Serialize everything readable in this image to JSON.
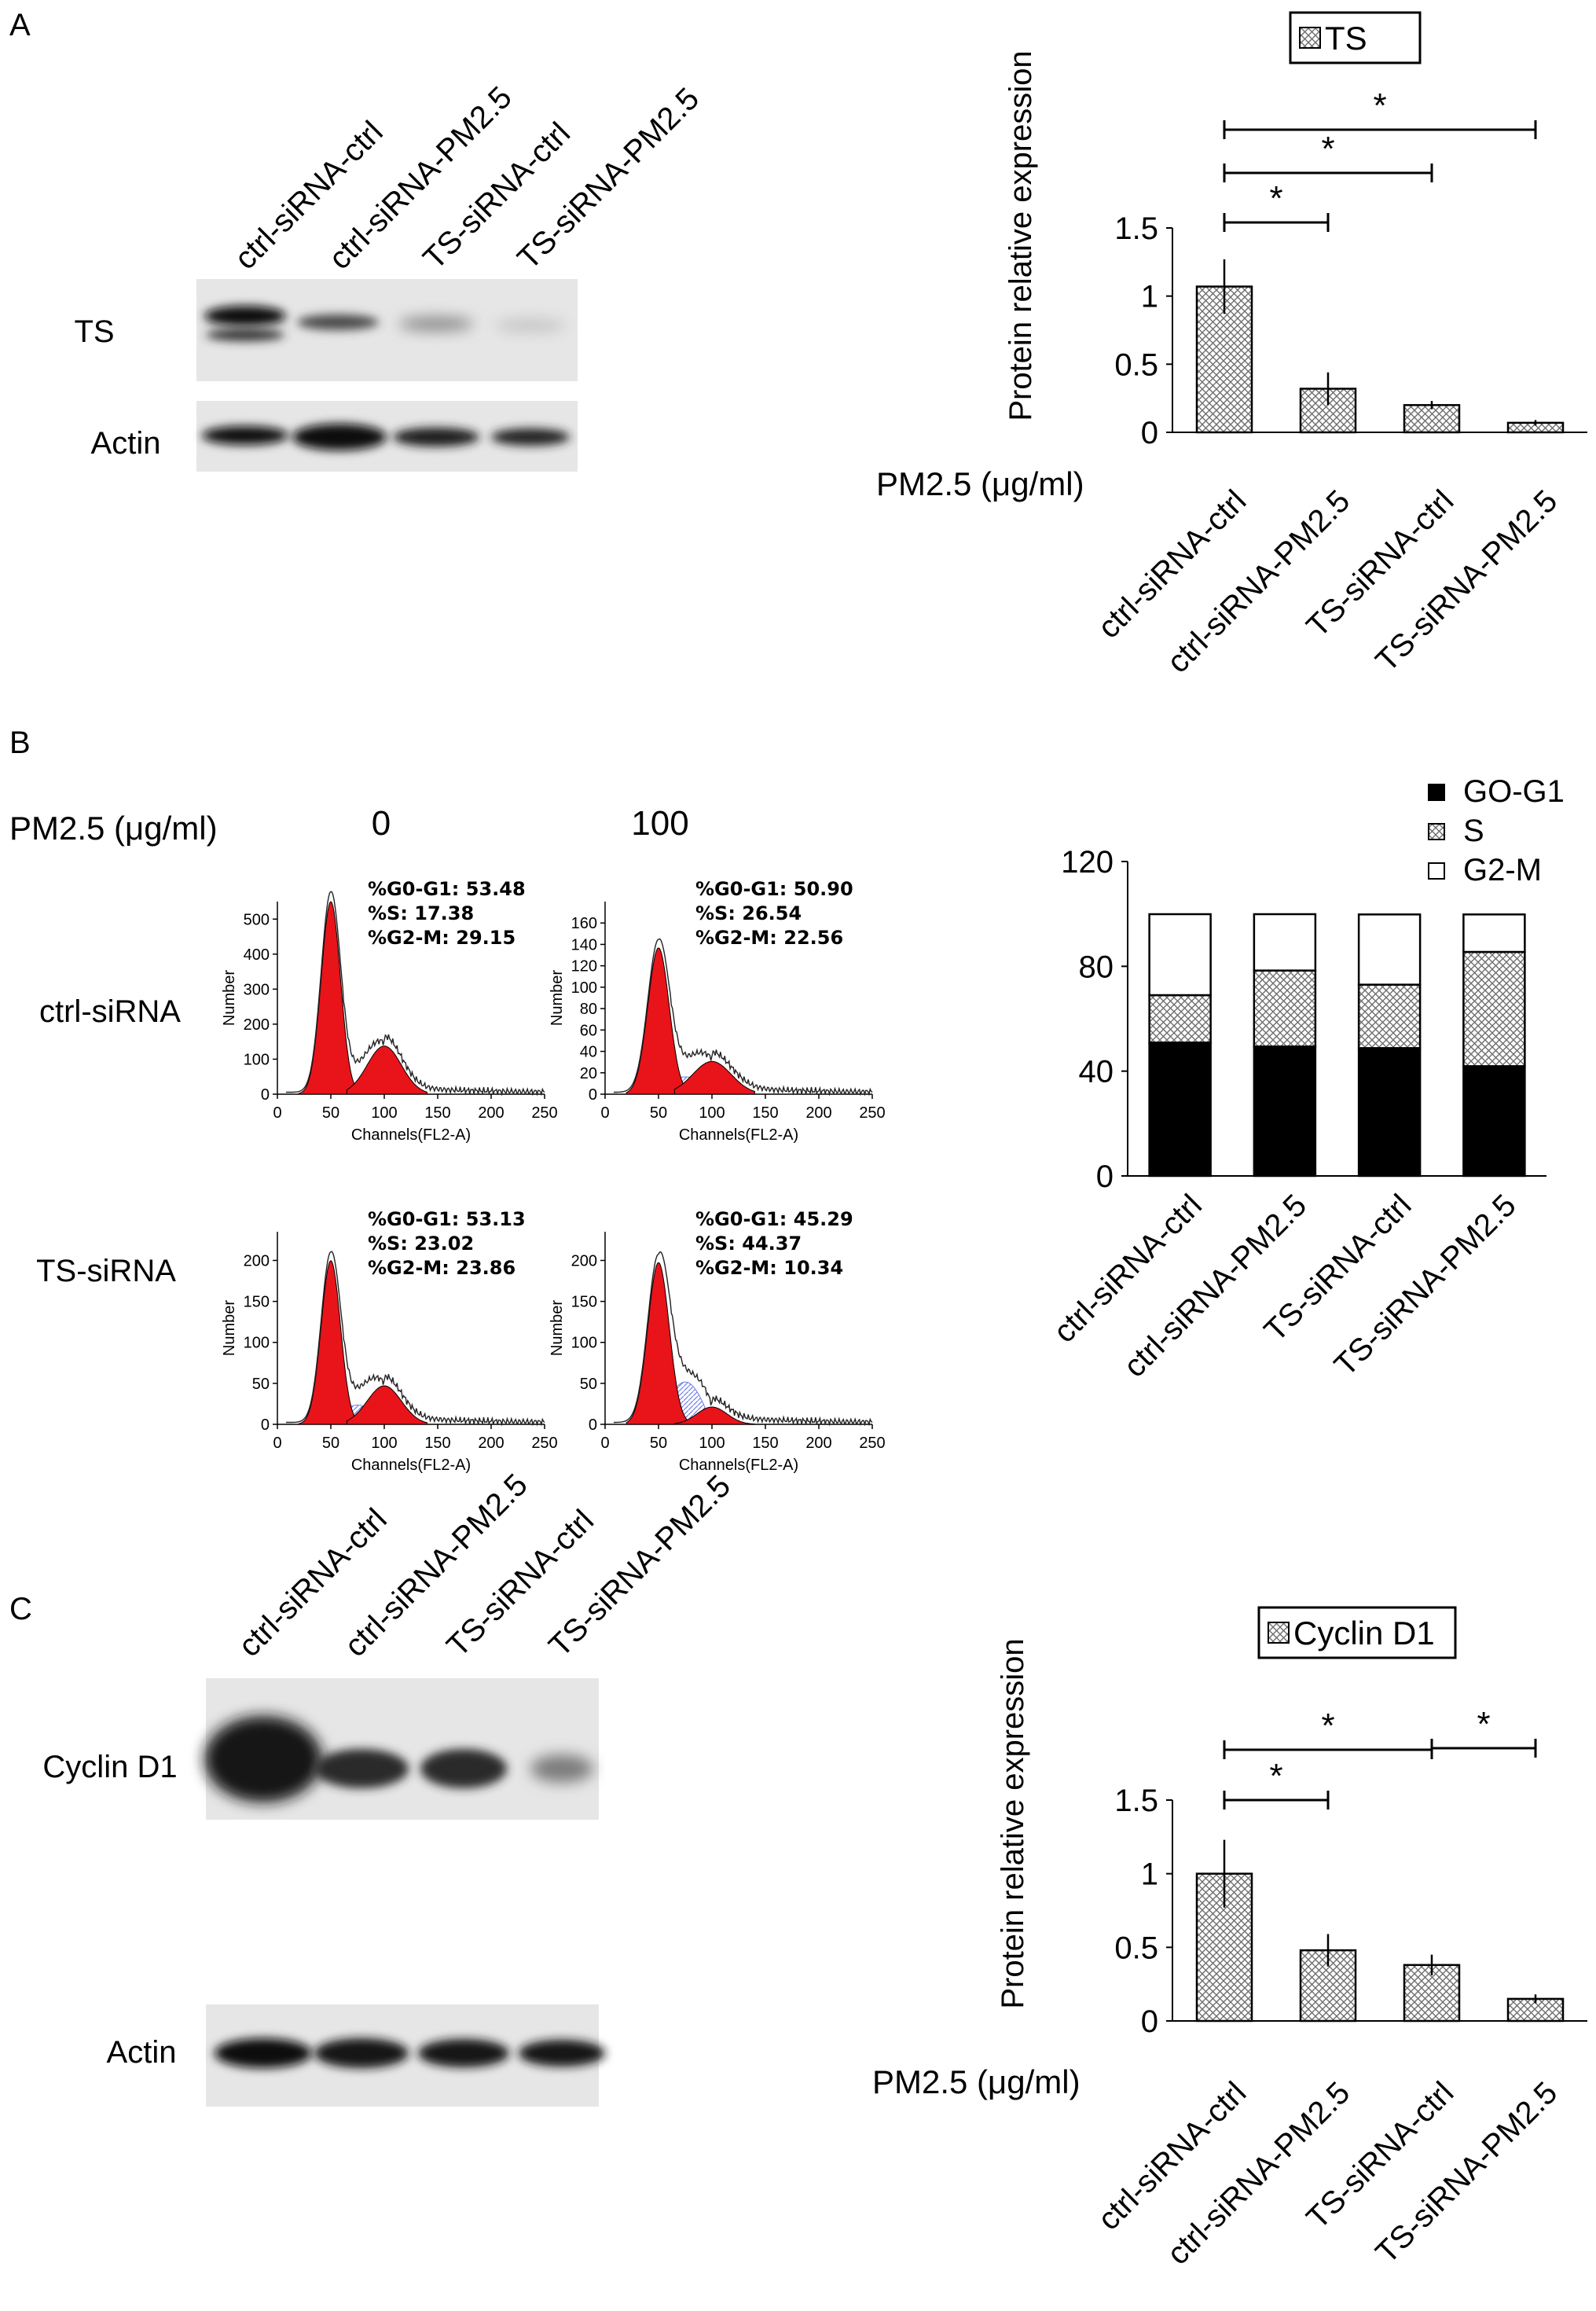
{
  "panels": {
    "A": {
      "letter": "A",
      "blot": {
        "lanes": [
          "ctrl-siRNA-ctrl",
          "ctrl-siRNA-PM2.5",
          "TS-siRNA-ctrl",
          "TS-siRNA-PM2.5"
        ],
        "rows": [
          "TS",
          "Actin"
        ]
      },
      "pm_label": "PM2.5 (μg/ml)"
    },
    "B": {
      "letter": "B",
      "pm_label": "PM2.5 (μg/ml)",
      "doses": [
        "0",
        "100"
      ],
      "row_labels": [
        "ctrl-siRNA",
        "TS-siRNA"
      ],
      "histograms": [
        {
          "y_label": "Number",
          "x_label": "Channels(FL2-A)",
          "yticks": [
            "0",
            "100",
            "200",
            "300",
            "400",
            "500"
          ],
          "xticks": [
            "0",
            "50",
            "100",
            "150",
            "200",
            "250"
          ],
          "stats": [
            "%G0-G1: 53.48",
            "%S: 17.38",
            "%G2-M: 29.15"
          ]
        },
        {
          "y_label": "Number",
          "x_label": "Channels(FL2-A)",
          "yticks": [
            "0",
            "20",
            "40",
            "60",
            "80",
            "100",
            "120",
            "140",
            "160"
          ],
          "xticks": [
            "0",
            "50",
            "100",
            "150",
            "200",
            "250"
          ],
          "stats": [
            "%G0-G1: 50.90",
            "%S: 26.54",
            "%G2-M: 22.56"
          ]
        },
        {
          "y_label": "Number",
          "x_label": "Channels(FL2-A)",
          "yticks": [
            "0",
            "50",
            "100",
            "150",
            "200"
          ],
          "xticks": [
            "0",
            "50",
            "100",
            "150",
            "200",
            "250"
          ],
          "stats": [
            "%G0-G1: 53.13",
            "%S: 23.02",
            "%G2-M: 23.86"
          ]
        },
        {
          "y_label": "Number",
          "x_label": "Channels(FL2-A)",
          "yticks": [
            "0",
            "50",
            "100",
            "150",
            "200"
          ],
          "xticks": [
            "0",
            "50",
            "100",
            "150",
            "200",
            "250"
          ],
          "stats": [
            "%G0-G1: 45.29",
            "%S: 44.37",
            "%G2-M: 10.34"
          ]
        }
      ]
    },
    "C": {
      "letter": "C",
      "blot": {
        "lanes": [
          "ctrl-siRNA-ctrl",
          "ctrl-siRNA-PM2.5",
          "TS-siRNA-ctrl",
          "TS-siRNA-PM2.5"
        ],
        "rows": [
          "Cyclin D1",
          "Actin"
        ]
      },
      "pm_label": "PM2.5 (μg/ml)"
    }
  },
  "colors": {
    "peak_fill": "#e8141a",
    "hatch": "#7a7a7a",
    "s_phase": "#9aa8ff"
  },
  "chart_data": [
    {
      "type": "bar",
      "categories": [
        "ctrl-siRNA-ctrl",
        "ctrl-siRNA-PM2.5",
        "TS-siRNA-ctrl",
        "TS-siRNA-PM2.5"
      ],
      "series": [
        {
          "name": "TS",
          "values": [
            1.07,
            0.32,
            0.2,
            0.07
          ]
        }
      ],
      "errors": [
        0.2,
        0.12,
        0.03,
        0.02
      ],
      "ylabel": "Protein relative expression",
      "yticks": [
        "0",
        "0.5",
        "1",
        "1.5"
      ],
      "ylim": [
        0,
        1.5
      ],
      "significance": [
        {
          "from": 0,
          "to": 1,
          "mark": "*"
        },
        {
          "from": 0,
          "to": 2,
          "mark": "*"
        },
        {
          "from": 0,
          "to": 3,
          "mark": "*"
        }
      ],
      "legend": "top"
    },
    {
      "type": "bar",
      "stacked": true,
      "categories": [
        "ctrl-siRNA-ctrl",
        "ctrl-siRNA-PM2.5",
        "TS-siRNA-ctrl",
        "TS-siRNA-PM2.5"
      ],
      "series": [
        {
          "name": "GO-G1",
          "values": [
            50.9,
            49.4,
            48.8,
            41.9
          ]
        },
        {
          "name": "S",
          "values": [
            18.1,
            29.0,
            24.2,
            43.6
          ]
        },
        {
          "name": "G2-M",
          "values": [
            30.9,
            21.5,
            26.8,
            14.3
          ]
        }
      ],
      "yticks": [
        "0",
        "40",
        "80",
        "120"
      ],
      "ylim": [
        0,
        120
      ],
      "legend": "top-right"
    },
    {
      "type": "bar",
      "categories": [
        "ctrl-siRNA-ctrl",
        "ctrl-siRNA-PM2.5",
        "TS-siRNA-ctrl",
        "TS-siRNA-PM2.5"
      ],
      "series": [
        {
          "name": "Cyclin D1",
          "values": [
            1.0,
            0.48,
            0.38,
            0.15
          ]
        }
      ],
      "errors": [
        0.23,
        0.11,
        0.07,
        0.03
      ],
      "ylabel": "Protein relative expression",
      "yticks": [
        "0",
        "0.5",
        "1",
        "1.5"
      ],
      "ylim": [
        0,
        1.5
      ],
      "significance": [
        {
          "from": 0,
          "to": 1,
          "mark": "*"
        },
        {
          "from": 0,
          "to": 2,
          "mark": "*"
        },
        {
          "from": 2,
          "to": 3,
          "mark": "*"
        }
      ],
      "legend": "top"
    }
  ]
}
